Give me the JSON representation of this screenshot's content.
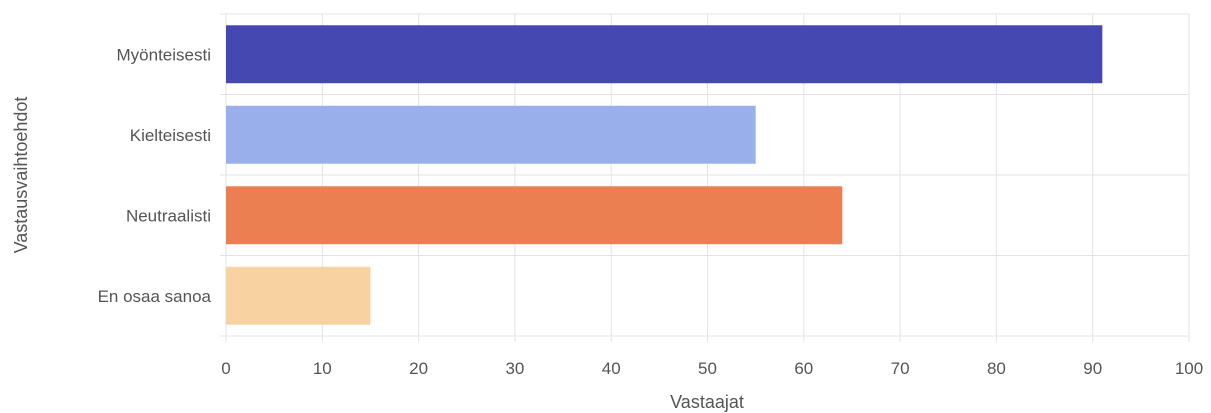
{
  "chart_data": {
    "type": "bar",
    "orientation": "horizontal",
    "categories": [
      "Myönteisesti",
      "Kielteisesti",
      "Neutraalisti",
      "En osaa sanoa"
    ],
    "values": [
      91,
      55,
      64,
      15
    ],
    "colors": [
      "#4548b0",
      "#99afec",
      "#ec7f52",
      "#f9d2a1"
    ],
    "xlabel": "Vastaajat",
    "ylabel": "Vastausvaihtoehdot",
    "xlim": [
      0,
      100
    ],
    "xticks": [
      "0",
      "10",
      "20",
      "30",
      "40",
      "50",
      "60",
      "70",
      "80",
      "90",
      "100"
    ],
    "grid": true,
    "legend": "none"
  }
}
